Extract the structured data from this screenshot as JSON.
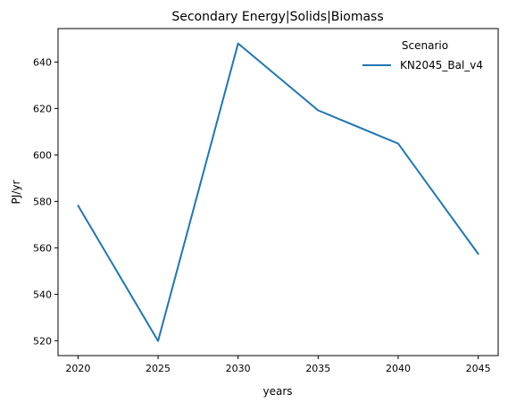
{
  "chart_data": {
    "type": "line",
    "title": "Secondary Energy|Solids|Biomass",
    "xlabel": "years",
    "ylabel": "PJ/yr",
    "x": [
      2020,
      2025,
      2030,
      2035,
      2040,
      2045
    ],
    "x_ticks": [
      "2020",
      "2025",
      "2030",
      "2035",
      "2040",
      "2045"
    ],
    "y_ticks": [
      "520",
      "540",
      "560",
      "580",
      "600",
      "620",
      "640"
    ],
    "xlim": [
      2018.75,
      2046.25
    ],
    "ylim": [
      513.6,
      654.4
    ],
    "grid": false,
    "legend": {
      "title": "Scenario",
      "placement": "top-right"
    },
    "series": [
      {
        "name": "KN2045_Bal_v4",
        "color": "#1f77b4",
        "values": [
          578.2,
          519.9,
          648.0,
          619.2,
          604.9,
          557.4
        ]
      }
    ]
  }
}
